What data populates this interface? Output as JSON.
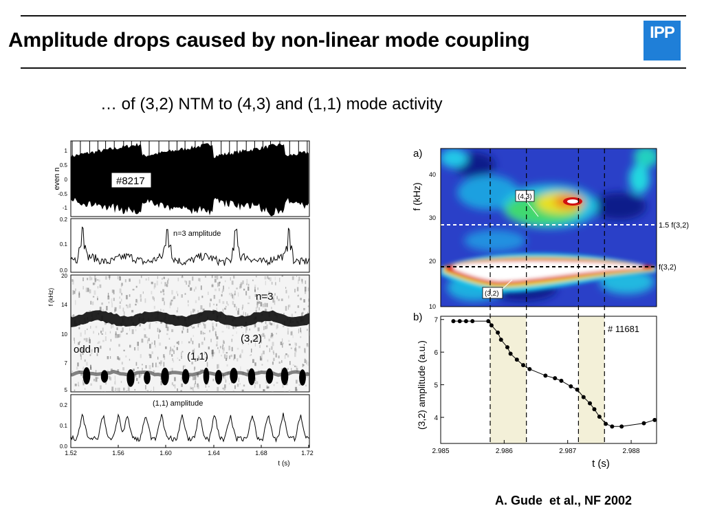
{
  "slide": {
    "title": "Amplitude drops caused by non-linear mode coupling",
    "subtitle": "… of (3,2) NTM to (4,3) and (1,1) mode activity",
    "citation": "A. Gude  et al., NF 2002",
    "logo_text": "IPP"
  },
  "colors": {
    "logo": "#1f7fd8",
    "shade": "#f3f0d8",
    "text": "#000000"
  },
  "left_figure": {
    "panel1": {
      "ylabel": "even n",
      "yticks": [
        "1",
        "0.5",
        "0",
        "-0.5",
        "-1"
      ],
      "badge": "#8217"
    },
    "panel2": {
      "label": "n=3 amplitude",
      "yticks": [
        "0.2",
        "0.1",
        "0.0"
      ]
    },
    "panel3": {
      "ylabel": "f (kHz)",
      "yticks": [
        "20",
        "14",
        "10",
        "7",
        "5"
      ],
      "label_n3": "n=3",
      "label_32": "(3,2)",
      "label_odd": "odd n",
      "label_11": "(1,1)"
    },
    "panel4": {
      "label": "(1,1) amplitude",
      "yticks": [
        "0.2",
        "0.1",
        "0.0"
      ]
    },
    "xticks": [
      "1.52",
      "1.56",
      "1.60",
      "1.64",
      "1.68",
      "1.72"
    ],
    "xlabel": "t (s)"
  },
  "right_figure": {
    "a": {
      "panel_label": "a)",
      "ylabel": "f (kHz)",
      "yticks": [
        "40",
        "30",
        "20",
        "10"
      ],
      "label_43": "(4,3)",
      "label_32": "(3,2)",
      "line_label_upper": "1.5 f(3,2)",
      "line_label_lower": "f(3,2)"
    },
    "b": {
      "panel_label": "b)",
      "ylabel": "(3,2) amplitude  (a.u.)",
      "xlabel": "t (s)",
      "shot": "# 11681",
      "yticks": [
        "7",
        "6",
        "5",
        "4"
      ],
      "xticks": [
        "2.985",
        "2.986",
        "2.987",
        "2.988"
      ]
    }
  },
  "chart_data": [
    {
      "type": "line",
      "title": "",
      "xlabel": "t (s)",
      "ylabel": "(3,2) amplitude  (a.u.)",
      "annotation": "# 11681",
      "xlim": [
        2.985,
        2.9884
      ],
      "ylim": [
        3.2,
        7.1
      ],
      "shaded_intervals": [
        [
          2.98578,
          2.98635
        ],
        [
          2.98717,
          2.98758
        ]
      ],
      "dashed_lines_x": [
        2.98578,
        2.98635,
        2.98717,
        2.98758
      ],
      "series": [
        {
          "name": "",
          "x": [
            2.9852,
            2.9853,
            2.9854,
            2.9855,
            2.98575,
            2.9858,
            2.9859,
            2.98595,
            2.98605,
            2.9861,
            2.9862,
            2.9863,
            2.9864,
            2.98665,
            2.9868,
            2.9869,
            2.98705,
            2.98715,
            2.98725,
            2.98735,
            2.98742,
            2.9875,
            2.9876,
            2.9877,
            2.98785,
            2.9882,
            2.98837
          ],
          "y": [
            6.95,
            6.95,
            6.95,
            6.95,
            6.95,
            6.82,
            6.6,
            6.38,
            6.15,
            5.95,
            5.77,
            5.6,
            5.48,
            5.28,
            5.2,
            5.12,
            4.95,
            4.85,
            4.62,
            4.43,
            4.25,
            4.02,
            3.8,
            3.72,
            3.72,
            3.82,
            3.92
          ]
        }
      ]
    }
  ]
}
